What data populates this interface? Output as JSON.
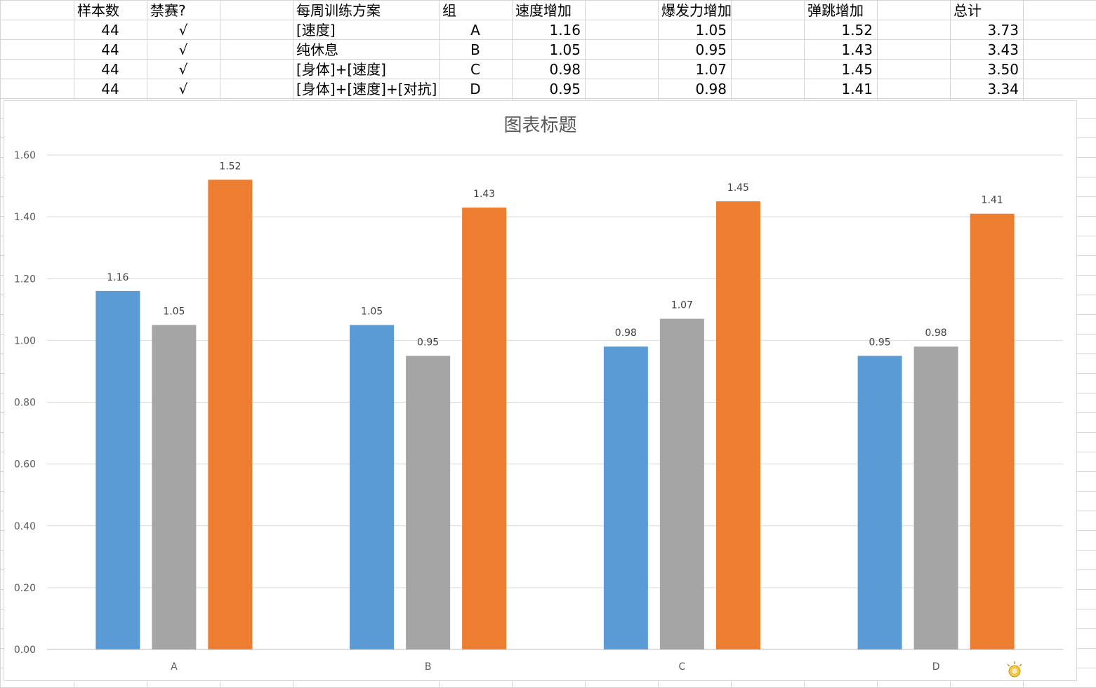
{
  "table": {
    "headers": [
      "样本数",
      "禁赛?",
      "每周训练方案",
      "组",
      "速度增加",
      "爆发力增加",
      "弹跳增加",
      "总计"
    ],
    "rows": [
      [
        "44",
        "√",
        "[速度]",
        "A",
        "1.16",
        "1.05",
        "1.52",
        "3.73"
      ],
      [
        "44",
        "√",
        "纯休息",
        "B",
        "1.05",
        "0.95",
        "1.43",
        "3.43"
      ],
      [
        "44",
        "√",
        "[身体]+[速度]",
        "C",
        "0.98",
        "1.07",
        "1.45",
        "3.50"
      ],
      [
        "44",
        "√",
        "[身体]+[速度]+[对抗]",
        "D",
        "0.95",
        "0.98",
        "1.41",
        "3.34"
      ]
    ]
  },
  "chart_data": {
    "type": "bar",
    "title": "图表标题",
    "categories": [
      "A",
      "B",
      "C",
      "D"
    ],
    "series": [
      {
        "values": [
          1.16,
          1.05,
          0.98,
          0.95
        ],
        "color": "#5b9bd5"
      },
      {
        "values": [
          1.05,
          0.95,
          1.07,
          0.98
        ],
        "color": "#a5a5a5"
      },
      {
        "values": [
          1.52,
          1.43,
          1.45,
          1.41
        ],
        "color": "#ed7d31"
      }
    ],
    "ylim": [
      0,
      1.6
    ],
    "yticks": [
      "0.00",
      "0.20",
      "0.40",
      "0.60",
      "0.80",
      "1.00",
      "1.20",
      "1.40",
      "1.60"
    ],
    "grid": true,
    "data_labels": true,
    "legend": "none"
  },
  "logo": {
    "name": "wps-logo-icon"
  }
}
